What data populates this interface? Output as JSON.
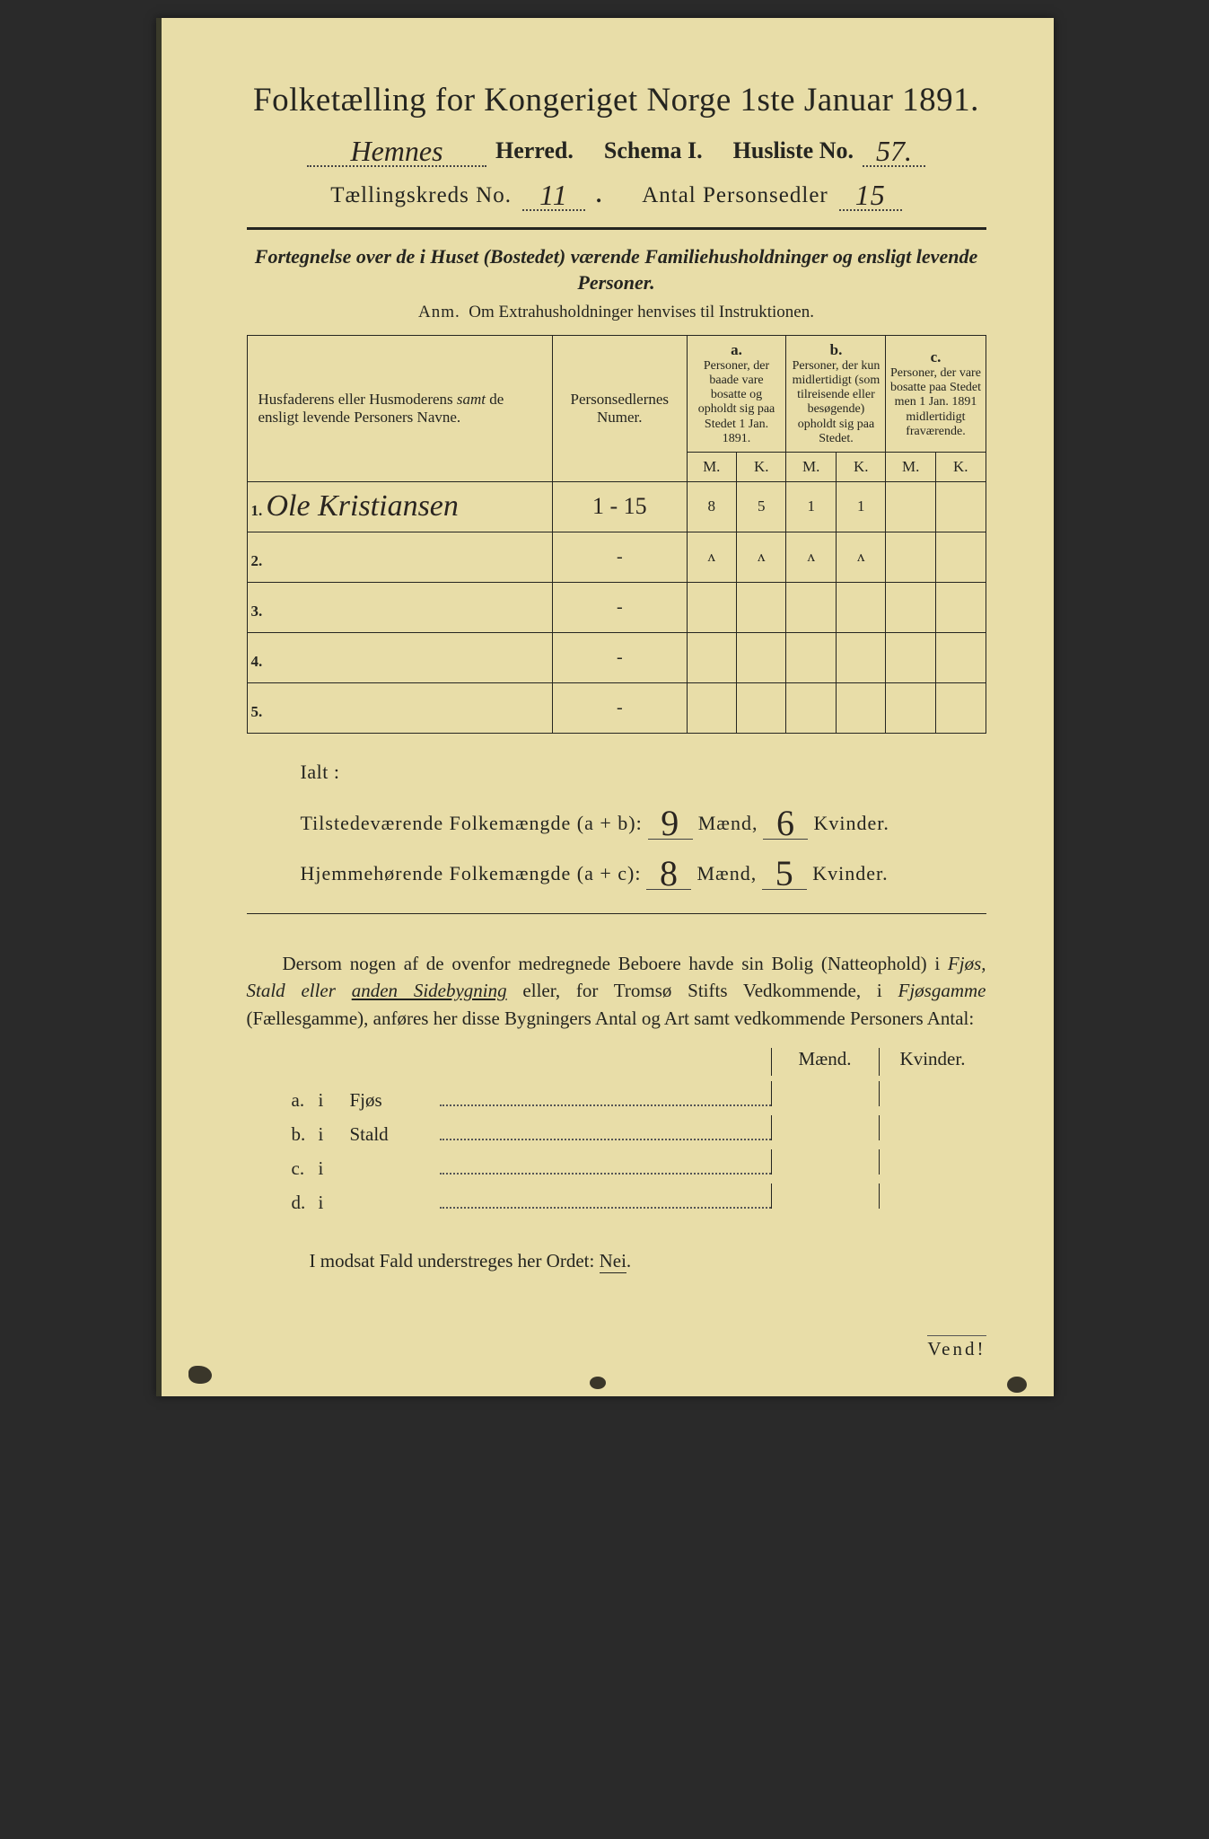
{
  "title": "Folketælling for Kongeriget Norge 1ste Januar 1891.",
  "line2": {
    "herred_hw": "Hemnes",
    "herred_label": "Herred.",
    "schema_label": "Schema I.",
    "husliste_label": "Husliste No.",
    "husliste_hw": "57."
  },
  "line3": {
    "kreds_label": "Tællingskreds No.",
    "kreds_hw": "11",
    "antal_label": "Antal Personsedler",
    "antal_hw": "15"
  },
  "desc": {
    "line1": "Fortegnelse over de i Huset (Bostedet) værende Familiehusholdninger og ensligt levende Personer.",
    "line2_prefix": "Anm.",
    "line2": "Om Extrahusholdninger henvises til Instruktionen."
  },
  "table": {
    "col1_head": "Husfaderens eller Husmoderens samt de ensligt levende Personers Navne.",
    "col2_head": "Personsedlernes Numer.",
    "col_a": "a.",
    "col_a_sub": "Personer, der baade vare bosatte og opholdt sig paa Stedet 1 Jan. 1891.",
    "col_b": "b.",
    "col_b_sub": "Personer, der kun midlertidigt (som tilreisende eller besøgende) opholdt sig paa Stedet.",
    "col_c": "c.",
    "col_c_sub": "Personer, der vare bosatte paa Stedet men 1 Jan. 1891 midlertidigt fraværende.",
    "m": "M.",
    "k": "K.",
    "rows": [
      {
        "n": "1.",
        "name": "Ole Kristiansen",
        "num": "1 - 15",
        "aM": "8",
        "aK": "5",
        "bM": "1",
        "bK": "1",
        "cM": "",
        "cK": ""
      },
      {
        "n": "2.",
        "name": "",
        "num": "-",
        "aM": "ʌ",
        "aK": "ʌ",
        "bM": "ʌ",
        "bK": "ʌ",
        "cM": "",
        "cK": "",
        "faint": true
      },
      {
        "n": "3.",
        "name": "",
        "num": "-",
        "aM": "",
        "aK": "",
        "bM": "",
        "bK": "",
        "cM": "",
        "cK": ""
      },
      {
        "n": "4.",
        "name": "",
        "num": "-",
        "aM": "",
        "aK": "",
        "bM": "",
        "bK": "",
        "cM": "",
        "cK": ""
      },
      {
        "n": "5.",
        "name": "",
        "num": "-",
        "aM": "",
        "aK": "",
        "bM": "",
        "bK": "",
        "cM": "",
        "cK": ""
      }
    ]
  },
  "totals": {
    "ialt": "Ialt :",
    "row1_label": "Tilstedeværende Folkemængde (a + b):",
    "row1_m": "9",
    "row1_mlab": "Mænd,",
    "row1_k": "6",
    "row1_klab": "Kvinder.",
    "row2_label": "Hjemmehørende Folkemængde (a + c):",
    "row2_m": "8",
    "row2_k": "5"
  },
  "para": "Dersom nogen af de ovenfor medregnede Beboere havde sin Bolig (Natteophold) i Fjøs, Stald eller anden Sidebygning eller, for Tromsø Stifts Vedkommende, i Fjøsgamme (Fællesgamme), anføres her disse Bygningers Antal og Art samt vedkommende Personers Antal:",
  "bldg": {
    "maend": "Mænd.",
    "kvinder": "Kvinder.",
    "rows": [
      {
        "lab": "a.",
        "i": "i",
        "name": "Fjøs"
      },
      {
        "lab": "b.",
        "i": "i",
        "name": "Stald"
      },
      {
        "lab": "c.",
        "i": "i",
        "name": ""
      },
      {
        "lab": "d.",
        "i": "i",
        "name": ""
      }
    ]
  },
  "nei": "I modsat Fald understreges her Ordet: Nei.",
  "vend": "Vend!"
}
